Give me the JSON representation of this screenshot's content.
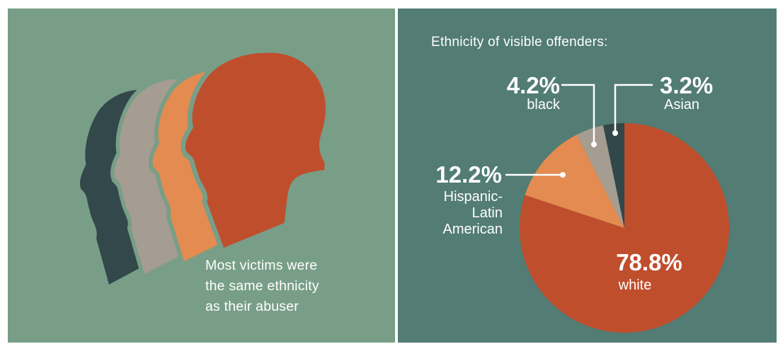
{
  "caption": {
    "lines": [
      "Most victims were",
      "the same ethnicity",
      "as their abuser"
    ]
  },
  "colors": {
    "left_bg": "#789e87",
    "right_bg": "#527c74",
    "white": "#bf4e2d",
    "hispanic": "#e38b50",
    "black": "#a59c92",
    "asian": "#32474a"
  },
  "icons": [
    "dark-head-silhouette-icon",
    "gray-head-silhouette-icon",
    "orange-head-silhouette-icon",
    "red-head-silhouette-icon"
  ],
  "chart_data": {
    "type": "pie",
    "title": "Ethnicity of visible offenders:",
    "slices": [
      {
        "value": 78.8,
        "pct_label": "78.8%",
        "label_lines": [
          "white"
        ],
        "color": "#bf4e2d"
      },
      {
        "value": 12.2,
        "pct_label": "12.2%",
        "label_lines": [
          "Hispanic-",
          "Latin",
          "American"
        ],
        "color": "#e38b50"
      },
      {
        "value": 4.2,
        "pct_label": "4.2%",
        "label_lines": [
          "black"
        ],
        "color": "#a59c92"
      },
      {
        "value": 3.2,
        "pct_label": "3.2%",
        "label_lines": [
          "Asian"
        ],
        "color": "#32474a"
      }
    ],
    "legend": "none"
  }
}
